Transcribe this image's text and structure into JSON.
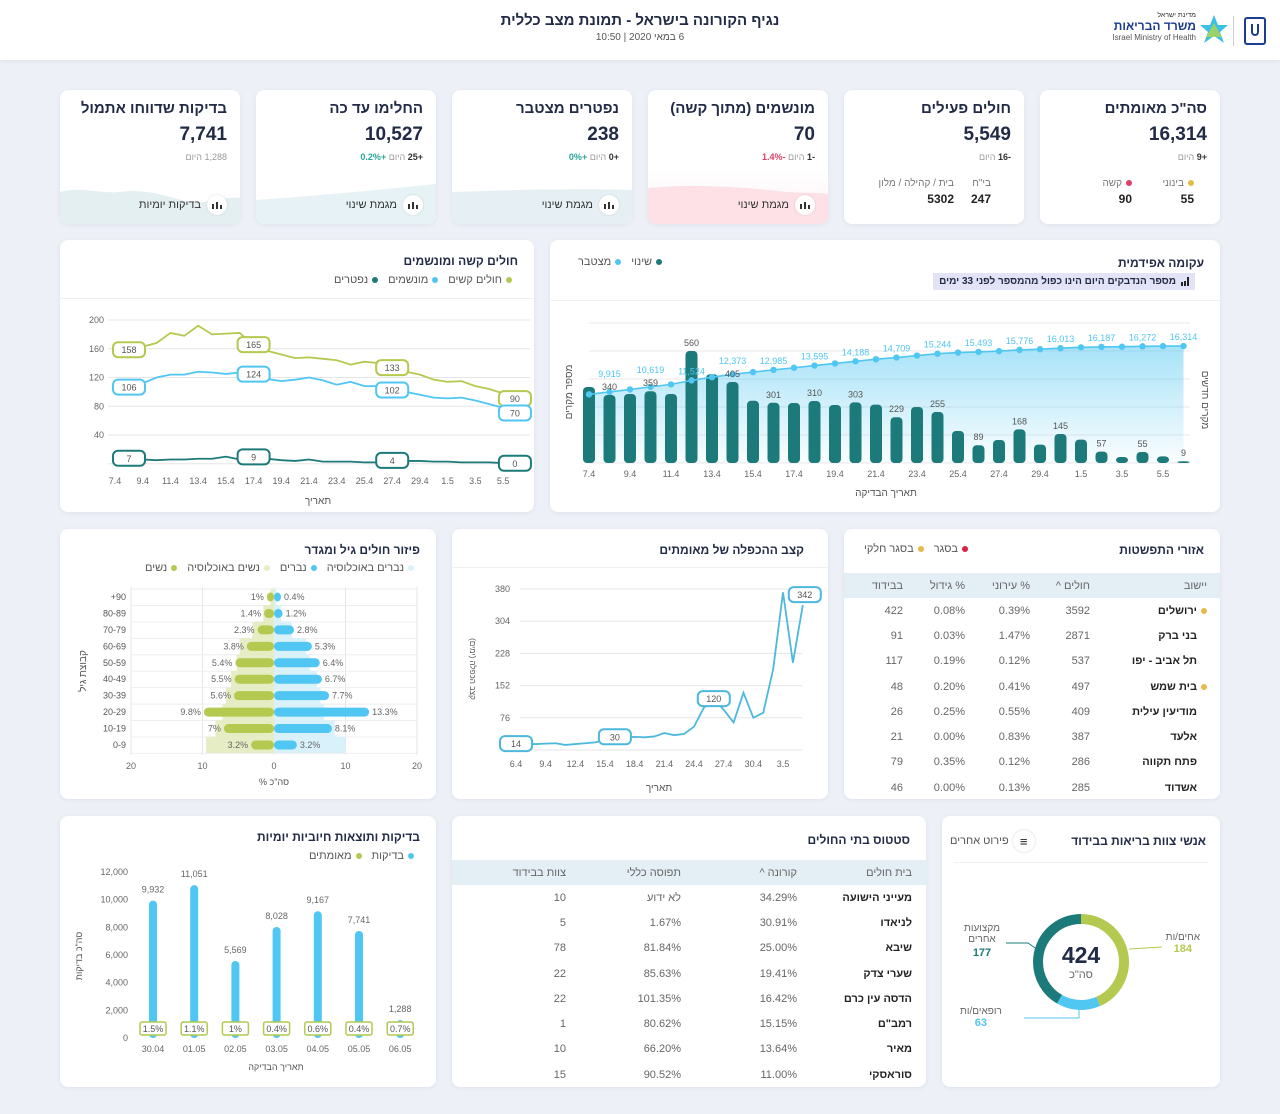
{
  "header": {
    "title": "נגיף הקורונה בישראל - תמונת מצב כללית",
    "subtitle": "6 במאי 2020 | 10:50",
    "logo_state": "מדינת ישראל",
    "logo_ministry": "משרד הבריאות",
    "logo_en": "Israel Ministry of Health"
  },
  "colors": {
    "dark_teal": "#1d7a7a",
    "light_blue": "#50c6f2",
    "olive": "#b3c94f",
    "red": "#e03f68",
    "yellow": "#e5b94a"
  },
  "kpis": [
    {
      "title": "סה\"כ מאומתים",
      "value": "16,314",
      "delta": "+9",
      "today": "היום",
      "breakdown": [
        {
          "label": "בינוני",
          "value": "55",
          "dot": "#e5b94a"
        },
        {
          "label": "קשה",
          "value": "90",
          "dot": "#e03f68"
        }
      ]
    },
    {
      "title": "חולים פעילים",
      "value": "5,549",
      "delta": "-16",
      "today": "היום",
      "breakdown": [
        {
          "label": "בי\"ח",
          "value": "247"
        },
        {
          "label": "בית / קהילה / מלון",
          "value": "5302"
        }
      ]
    },
    {
      "title": "מונשמים (מתוך קשה)",
      "value": "70",
      "delta": "-1",
      "today": "היום",
      "pct": "-1.4%",
      "button": "מגמת שינוי"
    },
    {
      "title": "נפטרים מצטבר",
      "value": "238",
      "delta": "+0",
      "today": "היום",
      "pct": "+0%",
      "button": "מגמת שינוי"
    },
    {
      "title": "החלימו עד כה",
      "value": "10,527",
      "delta": "+25",
      "today": "היום",
      "pct": "+0.2%",
      "button": "מגמת שינוי"
    },
    {
      "title": "בדיקות שדווחו אתמול",
      "value": "7,741",
      "delta": "1,288",
      "today": "היום",
      "button": "בדיקות יומיות"
    }
  ],
  "severe": {
    "title": "חולים קשה ומונשמים",
    "legend": [
      "חולים קשים",
      "מונשמים",
      "נפטרים"
    ]
  },
  "epidemic": {
    "title": "עקומה אפידמית",
    "badge": "מספר הנדבקים היום הינו כפול מהמספר לפני 33 ימים",
    "legend": [
      "שינוי",
      "מצטבר"
    ]
  },
  "age": {
    "title": "פיזור חולים גיל ומגדר",
    "legend": [
      "נברים באוכלוסיה",
      "נברים",
      "נשים באוכלוסיה",
      "נשים"
    ]
  },
  "doubling": {
    "title": "קצב ההכפלה של מאומתים"
  },
  "tests": {
    "title": "בדיקות ותוצאות חיוביות יומיות",
    "legend": [
      "בדיקות",
      "מאומתים"
    ]
  },
  "staff": {
    "title": "אנשי צוות בריאות בבידוד",
    "menu_label": "פירוט אחרים",
    "total": "424",
    "total_label": "סה\"כ",
    "segments": [
      {
        "label": "אחים/ות",
        "value": "184"
      },
      {
        "label": "רופאים/ות",
        "value": "63"
      },
      {
        "label": "מקצועות אחרים",
        "value": "177"
      }
    ]
  },
  "cities": {
    "title": "אזורי התפשטות",
    "legend": [
      "בסגר",
      "בסגר חלקי"
    ],
    "columns": [
      "יישוב",
      "חולים ^",
      "% עירוני",
      "% גידול",
      "בבידוד"
    ],
    "rows": [
      [
        "ירושלים",
        "3592",
        "0.39%",
        "0.08%",
        "422",
        "partial"
      ],
      [
        "בני ברק",
        "2871",
        "1.47%",
        "0.03%",
        "91",
        ""
      ],
      [
        "תל אביב - יפו",
        "537",
        "0.12%",
        "0.19%",
        "117",
        ""
      ],
      [
        "בית שמש",
        "497",
        "0.41%",
        "0.20%",
        "48",
        "partial"
      ],
      [
        "מודיעין עילית",
        "409",
        "0.55%",
        "0.25%",
        "26",
        ""
      ],
      [
        "אלעד",
        "387",
        "0.83%",
        "0.00%",
        "21",
        ""
      ],
      [
        "פתח תקווה",
        "286",
        "0.12%",
        "0.35%",
        "79",
        ""
      ],
      [
        "אשדוד",
        "285",
        "0.13%",
        "0.00%",
        "46",
        ""
      ]
    ]
  },
  "hospitals": {
    "title": "סטטוס בתי החולים",
    "columns": [
      "בית חולים",
      "קורונה ^",
      "תפוסה כללי",
      "צוות בבידוד"
    ],
    "rows": [
      [
        "מעייני הישועה",
        "34.29%",
        "לא ידוע",
        "10"
      ],
      [
        "לניאדו",
        "30.91%",
        "1.67%",
        "5"
      ],
      [
        "שיבא",
        "25.00%",
        "81.84%",
        "78"
      ],
      [
        "שערי צדק",
        "19.41%",
        "85.63%",
        "22"
      ],
      [
        "הדסה עין כרם",
        "16.42%",
        "101.35%",
        "22"
      ],
      [
        "רמב\"ם",
        "15.15%",
        "80.62%",
        "1"
      ],
      [
        "מאיר",
        "13.64%",
        "66.20%",
        "10"
      ],
      [
        "סוראסקי",
        "11.00%",
        "90.52%",
        "15"
      ]
    ]
  },
  "chart_data": [
    {
      "type": "line",
      "title": "חולים קשה ומונשמים",
      "xlabel": "תאריך",
      "ylim": [
        0,
        200
      ],
      "yticks": [
        "40",
        "80",
        "120",
        "160",
        "200"
      ],
      "x": [
        "7.4",
        "8.4",
        "9.4",
        "10.4",
        "11.4",
        "12.4",
        "13.4",
        "14.4",
        "15.4",
        "16.4",
        "17.4",
        "18.4",
        "19.4",
        "20.4",
        "21.4",
        "22.4",
        "23.4",
        "24.4",
        "25.4",
        "26.4",
        "27.4",
        "28.4",
        "29.4",
        "30.4",
        "1.5",
        "2.5",
        "3.5",
        "4.5",
        "5.5",
        "6.5"
      ],
      "xticks": [
        "7.4",
        "9.4",
        "11.4",
        "13.4",
        "15.4",
        "17.4",
        "19.4",
        "21.4",
        "23.4",
        "25.4",
        "27.4",
        "29.4",
        "1.5",
        "3.5",
        "5.5"
      ],
      "series": [
        {
          "name": "חולים קשים",
          "color": "#b3c94f",
          "values": [
            158,
            160,
            163,
            168,
            182,
            178,
            192,
            180,
            181,
            182,
            165,
            157,
            152,
            147,
            148,
            146,
            144,
            138,
            142,
            140,
            133,
            128,
            124,
            117,
            114,
            115,
            108,
            104,
            98,
            90
          ],
          "labels": [
            "158",
            "165",
            "133",
            "90"
          ]
        },
        {
          "name": "מונשמים",
          "color": "#50c6f2",
          "values": [
            106,
            108,
            112,
            120,
            124,
            124,
            128,
            127,
            125,
            127,
            124,
            118,
            115,
            117,
            120,
            116,
            110,
            114,
            108,
            108,
            102,
            100,
            96,
            92,
            91,
            92,
            88,
            83,
            78,
            70
          ],
          "labels": [
            "106",
            "124",
            "102",
            "70"
          ]
        },
        {
          "name": "נפטרים",
          "color": "#1d7a7a",
          "values": [
            7,
            7,
            6,
            5,
            6,
            6,
            7,
            7,
            10,
            6,
            9,
            7,
            5,
            4,
            6,
            3,
            3,
            3,
            2,
            2,
            4,
            4,
            4,
            3,
            3,
            2,
            2,
            2,
            1,
            0
          ],
          "labels": [
            "7",
            "9",
            "4",
            "0"
          ]
        }
      ]
    },
    {
      "type": "bar",
      "title": "עקומה אפידמית",
      "xlabel": "תאריך הבדיקה",
      "ylabel_left": "מספר מקרים",
      "ylabel_right": "מקרים חדשים",
      "x": [
        "7.4",
        "8.4",
        "9.4",
        "10.4",
        "11.4",
        "12.4",
        "13.4",
        "14.4",
        "15.4",
        "16.4",
        "17.4",
        "18.4",
        "19.4",
        "20.4",
        "21.4",
        "22.4",
        "23.4",
        "24.4",
        "25.4",
        "26.4",
        "27.4",
        "28.4",
        "29.4",
        "30.4",
        "1.5",
        "2.5",
        "3.5",
        "4.5",
        "5.5",
        "6.5"
      ],
      "xticks": [
        "7.4",
        "9.4",
        "11.4",
        "13.4",
        "15.4",
        "17.4",
        "19.4",
        "21.4",
        "23.4",
        "25.4",
        "27.4",
        "29.4",
        "1.5",
        "3.5",
        "5.5"
      ],
      "series": [
        {
          "name": "שינוי",
          "color": "#1d7a7a",
          "values": [
            380,
            340,
            345,
            359,
            345,
            560,
            444,
            405,
            311,
            301,
            300,
            310,
            290,
            303,
            292,
            229,
            280,
            255,
            160,
            89,
            115,
            168,
            92,
            145,
            117,
            57,
            30,
            55,
            33,
            9
          ]
        },
        {
          "name": "מצטבר",
          "color": "#50c6f2",
          "values": [
            9575,
            9915,
            10260,
            10619,
            10964,
            11524,
            11968,
            12373,
            12684,
            12985,
            13285,
            13595,
            13885,
            14188,
            14480,
            14709,
            14989,
            15244,
            15404,
            15493,
            15608,
            15776,
            15868,
            16013,
            16130,
            16187,
            16217,
            16272,
            16305,
            16314
          ]
        }
      ],
      "daily_labels": [
        "340",
        "359",
        "560",
        "405",
        "301",
        "310",
        "303",
        "229",
        "255",
        "89",
        "168",
        "145",
        "57",
        "55",
        "9"
      ],
      "cum_labels": [
        "9,915",
        "10,619",
        "11,524",
        "12,373",
        "12,985",
        "13,595",
        "14,188",
        "14,709",
        "15,244",
        "15,493",
        "15,776",
        "16,013",
        "16,187",
        "16,272",
        "16,314"
      ]
    },
    {
      "type": "bar",
      "title": "פיזור חולים גיל ומגדר",
      "xlabel": "% סה\"כ",
      "ylabel": "קבוצת גיל",
      "xlim": [
        -20,
        20
      ],
      "xticks": [
        "20",
        "10",
        "0",
        "10",
        "20"
      ],
      "categories": [
        "+90",
        "80-89",
        "70-79",
        "60-69",
        "50-59",
        "40-49",
        "30-39",
        "20-29",
        "10-19",
        "0-9"
      ],
      "series": [
        {
          "name": "נברים",
          "color": "#50c6f2",
          "values": [
            0.4,
            1.2,
            2.8,
            5.3,
            6.4,
            6.7,
            7.7,
            13.3,
            8.1,
            3.2
          ],
          "labels": [
            "0.4%",
            "1.2%",
            "2.8%",
            "5.3%",
            "6.4%",
            "6.7%",
            "7.7%",
            "13.3%",
            "8.1%",
            "3.2%"
          ]
        },
        {
          "name": "נשים",
          "color": "#b3c94f",
          "values": [
            1,
            1.4,
            2.3,
            3.8,
            5.4,
            5.5,
            5.6,
            9.8,
            7,
            3.2
          ],
          "labels": [
            "1%",
            "1.4%",
            "2.3%",
            "3.8%",
            "5.4%",
            "5.5%",
            "5.6%",
            "9.8%",
            "7%",
            "3.2%"
          ]
        },
        {
          "name": "נברים באוכלוסיה",
          "color": "#d9f1fb",
          "values": [
            0.3,
            1,
            2.5,
            4.5,
            5,
            6,
            6.5,
            7,
            8.5,
            10
          ]
        },
        {
          "name": "נשים באוכלוסיה",
          "color": "#e6edc4",
          "values": [
            0.5,
            1.5,
            3,
            4.8,
            5.2,
            6,
            6.7,
            7.2,
            8.2,
            9.5
          ]
        }
      ]
    },
    {
      "type": "line",
      "title": "קצב ההכפלה של מאומתים",
      "xlabel": "תאריך",
      "ylabel": "קצב הכפלה (ימים)",
      "ylim": [
        0,
        380
      ],
      "yticks": [
        "76",
        "152",
        "228",
        "304",
        "380"
      ],
      "x": [
        "6.4",
        "7.4",
        "8.4",
        "9.4",
        "10.4",
        "11.4",
        "12.4",
        "13.4",
        "14.4",
        "15.4",
        "16.4",
        "17.4",
        "18.4",
        "19.4",
        "20.4",
        "21.4",
        "22.4",
        "23.4",
        "24.4",
        "25.4",
        "26.4",
        "27.4",
        "28.4",
        "29.4",
        "30.4",
        "1.5",
        "2.5",
        "3.5",
        "4.5",
        "5.5"
      ],
      "xticks": [
        "6.4",
        "9.4",
        "12.4",
        "15.4",
        "18.4",
        "21.4",
        "24.4",
        "27.4",
        "30.4",
        "3.5"
      ],
      "series": [
        {
          "color": "#4cb8dc",
          "values": [
            14,
            14,
            14,
            15,
            16,
            12,
            14,
            16,
            18,
            24,
            30,
            30,
            31,
            30,
            32,
            40,
            35,
            38,
            55,
            100,
            120,
            95,
            65,
            135,
            76,
            88,
            190,
            372,
            206,
            342
          ],
          "labels": [
            "14",
            "30",
            "120",
            "342"
          ]
        }
      ]
    },
    {
      "type": "bar",
      "title": "בדיקות ותוצאות חיוביות יומיות",
      "xlabel": "תאריך הבדיקה",
      "ylabel": "סה\"כ בדיקות",
      "ylim": [
        0,
        12000
      ],
      "yticks": [
        "0",
        "2,000",
        "4,000",
        "6,000",
        "8,000",
        "10,000",
        "12,000"
      ],
      "categories": [
        "30.04",
        "01.05",
        "02.05",
        "03.05",
        "04.05",
        "05.05",
        "06.05"
      ],
      "series": [
        {
          "name": "בדיקות",
          "color": "#50c6f2",
          "values": [
            9932,
            11051,
            5569,
            8028,
            9167,
            7741,
            1288
          ],
          "labels": [
            "9,932",
            "11,051",
            "5,569",
            "8,028",
            "9,167",
            "7,741",
            "1,288"
          ]
        },
        {
          "name": "מאומתים",
          "color": "#b3c94f",
          "values": [
            1.5,
            1.1,
            1,
            0.4,
            0.6,
            0.4,
            0.7
          ],
          "labels": [
            "1.5%",
            "1.1%",
            "1%",
            "0.4%",
            "0.6%",
            "0.4%",
            "0.7%"
          ]
        }
      ]
    },
    {
      "type": "pie",
      "title": "אנשי צוות בריאות בבידוד",
      "categories": [
        "אחים/ות",
        "רופאים/ות",
        "מקצועות אחרים"
      ],
      "values": [
        184,
        63,
        177
      ],
      "colors": [
        "#b3c94f",
        "#50c6f2",
        "#1d7a7a"
      ]
    }
  ]
}
